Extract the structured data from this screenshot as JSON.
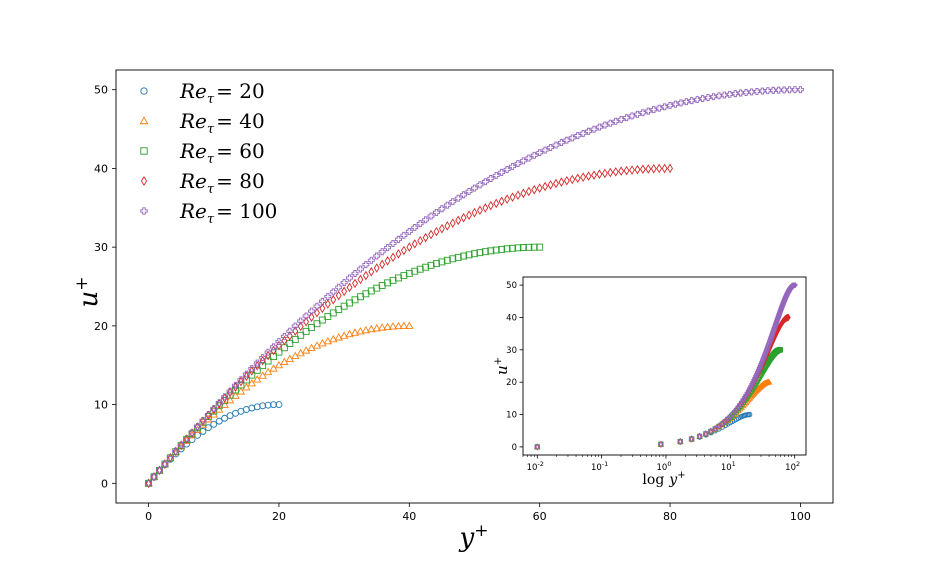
{
  "chart_data": [
    {
      "id": "main",
      "type": "scatter",
      "xlabel_base": "y",
      "xlabel_sup": "+",
      "ylabel_base": "u",
      "ylabel_sup": "+",
      "xlim": [
        -5,
        105
      ],
      "ylim": [
        -2.5,
        52.5
      ],
      "xticks": [
        0,
        20,
        40,
        60,
        80,
        100
      ],
      "yticks": [
        0,
        10,
        20,
        30,
        40,
        50
      ],
      "grid": false,
      "legend_position": "upper-left",
      "series": [
        {
          "label_base": "Re",
          "label_sub": "τ",
          "label_value": "= 20",
          "re": 20,
          "marker": "circle",
          "color": "#1f77b4"
        },
        {
          "label_base": "Re",
          "label_sub": "τ",
          "label_value": "= 40",
          "re": 40,
          "marker": "triangle",
          "color": "#ff7f0e"
        },
        {
          "label_base": "Re",
          "label_sub": "τ",
          "label_value": "= 60",
          "re": 60,
          "marker": "square",
          "color": "#2ca02c"
        },
        {
          "label_base": "Re",
          "label_sub": "τ",
          "label_value": "= 80",
          "re": 80,
          "marker": "diamond",
          "color": "#d62728"
        },
        {
          "label_base": "Re",
          "label_sub": "τ",
          "label_value": "= 100",
          "re": 100,
          "marker": "plus",
          "color": "#9467bd"
        }
      ]
    },
    {
      "id": "inset",
      "type": "scatter",
      "xscale": "log",
      "xlabel_prefix": "log",
      "xlabel_base": "y",
      "xlabel_sup": "+",
      "ylabel_base": "u",
      "ylabel_sup": "+",
      "xlim": [
        0.006,
        150
      ],
      "ylim": [
        -2.5,
        52.5
      ],
      "xticks": [
        {
          "base": "10",
          "exp": "-2"
        },
        {
          "base": "10",
          "exp": "-1"
        },
        {
          "base": "10",
          "exp": "0"
        },
        {
          "base": "10",
          "exp": "1"
        },
        {
          "base": "10",
          "exp": "2"
        }
      ],
      "yticks": [
        0,
        10,
        20,
        30,
        40,
        50
      ],
      "grid": false
    }
  ]
}
